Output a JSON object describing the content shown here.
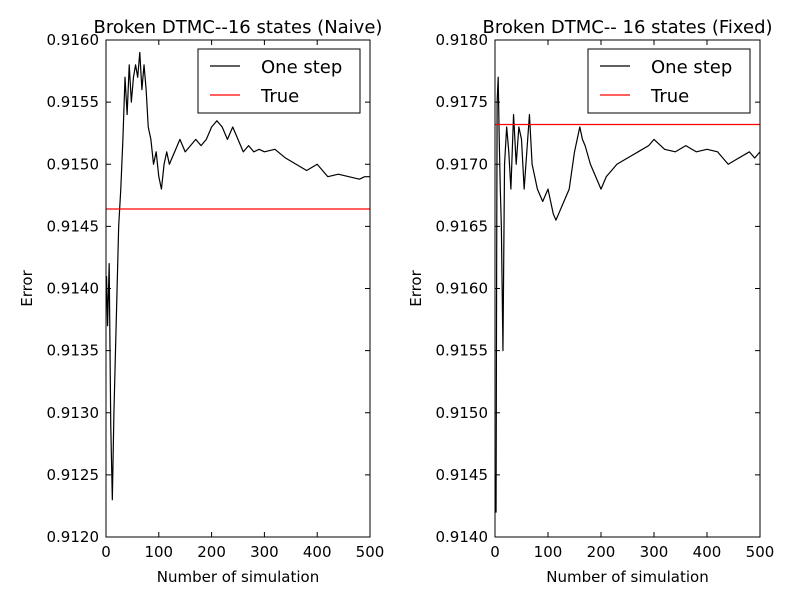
{
  "chart_data": [
    {
      "type": "line",
      "title": "Broken DTMC--16 states (Naive)",
      "xlabel": "Number of simulation",
      "ylabel": "Error",
      "xlim": [
        0,
        500
      ],
      "ylim": [
        0.912,
        0.916
      ],
      "x_ticks": [
        "0",
        "100",
        "200",
        "300",
        "400",
        "500"
      ],
      "y_ticks": [
        "0.9120",
        "0.9125",
        "0.9130",
        "0.9135",
        "0.9140",
        "0.9145",
        "0.9150",
        "0.9155",
        "0.9160"
      ],
      "grid": false,
      "legend_position": "top-right",
      "series": [
        {
          "name": "One step",
          "color": "#000000",
          "x": [
            1,
            3,
            6,
            9,
            12,
            15,
            18,
            21,
            24,
            28,
            32,
            36,
            40,
            44,
            48,
            52,
            56,
            60,
            64,
            68,
            72,
            76,
            80,
            85,
            90,
            95,
            100,
            105,
            110,
            115,
            120,
            125,
            130,
            140,
            150,
            160,
            170,
            180,
            190,
            200,
            210,
            220,
            230,
            240,
            250,
            260,
            270,
            280,
            290,
            300,
            320,
            340,
            360,
            380,
            400,
            420,
            440,
            460,
            480,
            490,
            500
          ],
          "y": [
            0.9141,
            0.9137,
            0.9142,
            0.9129,
            0.9123,
            0.913,
            0.9135,
            0.914,
            0.9145,
            0.9148,
            0.9152,
            0.9157,
            0.9154,
            0.9158,
            0.9155,
            0.9157,
            0.9158,
            0.9157,
            0.9159,
            0.9156,
            0.9158,
            0.9156,
            0.9153,
            0.9152,
            0.915,
            0.9151,
            0.9149,
            0.9148,
            0.915,
            0.9151,
            0.915,
            0.91505,
            0.9151,
            0.9152,
            0.9151,
            0.91515,
            0.9152,
            0.91515,
            0.9152,
            0.9153,
            0.91535,
            0.9153,
            0.9152,
            0.9153,
            0.9152,
            0.9151,
            0.91515,
            0.9151,
            0.91512,
            0.9151,
            0.91512,
            0.91505,
            0.915,
            0.91495,
            0.915,
            0.9149,
            0.91492,
            0.9149,
            0.91488,
            0.9149,
            0.9149
          ]
        },
        {
          "name": "True",
          "color": "#ff0000",
          "x": [
            0,
            500
          ],
          "y": [
            0.91464,
            0.91464
          ]
        }
      ]
    },
    {
      "type": "line",
      "title": "Broken DTMC-- 16 states (Fixed)",
      "xlabel": "Number of simulation",
      "ylabel": "Error",
      "xlim": [
        0,
        500
      ],
      "ylim": [
        0.914,
        0.918
      ],
      "x_ticks": [
        "0",
        "100",
        "200",
        "300",
        "400",
        "500"
      ],
      "y_ticks": [
        "0.9140",
        "0.9145",
        "0.9150",
        "0.9155",
        "0.9160",
        "0.9165",
        "0.9170",
        "0.9175",
        "0.9180"
      ],
      "grid": false,
      "legend_position": "top-right",
      "series": [
        {
          "name": "One step",
          "color": "#000000",
          "x": [
            1,
            2,
            3,
            4,
            6,
            8,
            10,
            12,
            15,
            18,
            22,
            26,
            30,
            35,
            40,
            45,
            50,
            55,
            60,
            65,
            70,
            75,
            80,
            90,
            100,
            110,
            115,
            120,
            130,
            140,
            150,
            160,
            165,
            170,
            180,
            190,
            200,
            210,
            220,
            230,
            250,
            270,
            290,
            300,
            320,
            340,
            360,
            380,
            400,
            420,
            440,
            460,
            480,
            490,
            500
          ],
          "y": [
            0.9145,
            0.9142,
            0.916,
            0.9175,
            0.9177,
            0.9172,
            0.9168,
            0.9165,
            0.9155,
            0.917,
            0.9173,
            0.9171,
            0.9168,
            0.9174,
            0.917,
            0.9173,
            0.9172,
            0.9168,
            0.9171,
            0.9174,
            0.917,
            0.9169,
            0.9168,
            0.9167,
            0.9168,
            0.9166,
            0.91655,
            0.9166,
            0.9167,
            0.9168,
            0.9171,
            0.9173,
            0.9172,
            0.91715,
            0.917,
            0.9169,
            0.9168,
            0.9169,
            0.91695,
            0.917,
            0.91705,
            0.9171,
            0.91715,
            0.9172,
            0.91712,
            0.9171,
            0.91715,
            0.9171,
            0.91712,
            0.9171,
            0.917,
            0.91705,
            0.9171,
            0.91705,
            0.9171
          ]
        },
        {
          "name": "True",
          "color": "#ff0000",
          "x": [
            0,
            500
          ],
          "y": [
            0.91732,
            0.91732
          ]
        }
      ]
    }
  ]
}
